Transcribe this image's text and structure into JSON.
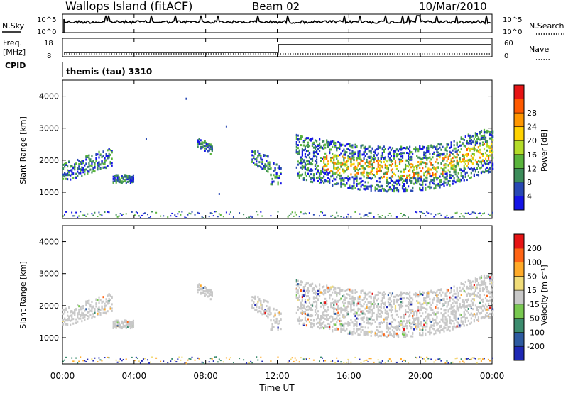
{
  "header": {
    "title": "Wallops Island (fitACF)",
    "beam": "Beam 02",
    "date": "10/Mar/2010"
  },
  "top_panels": {
    "nsky": {
      "label": "N.Sky",
      "ticks": [
        "10^5",
        "10^0"
      ],
      "right_ticks": [
        "10^5",
        "10^0"
      ],
      "right_label": "N.Search"
    },
    "freq": {
      "label_lines": [
        "Freq.",
        "[MHz]"
      ],
      "ticks": [
        "18",
        "8"
      ],
      "right_ticks": [
        "60",
        "0"
      ],
      "right_label": "Nave"
    },
    "cpid": {
      "label": "CPID",
      "value": "themis (tau) 3310"
    }
  },
  "chart_data": [
    {
      "type": "heatmap",
      "name": "power",
      "ylabel": "Slant Range [km]",
      "yticks": [
        "1000",
        "2000",
        "3000",
        "4000"
      ],
      "ylim": [
        180,
        4500
      ],
      "xlim": [
        0,
        24
      ],
      "colorbar": {
        "label": "Power [dB]",
        "ticks": [
          "4",
          "8",
          "12",
          "16",
          "20",
          "24",
          "28"
        ],
        "colors": [
          "#1414e6",
          "#2848b4",
          "#3c8c5a",
          "#5ab43c",
          "#b4dc28",
          "#ffd200",
          "#ff9600",
          "#ff5a00",
          "#e61414"
        ]
      }
    },
    {
      "type": "heatmap",
      "name": "velocity",
      "ylabel": "Slant Range [km]",
      "yticks": [
        "1000",
        "2000",
        "3000",
        "4000"
      ],
      "ylim": [
        180,
        4500
      ],
      "xlim": [
        0,
        24
      ],
      "xlabel": "Time UT",
      "xticks": [
        "00:00",
        "04:00",
        "08:00",
        "12:00",
        "16:00",
        "20:00",
        "00:00"
      ],
      "colorbar": {
        "label": "Velocity [m s⁻¹]",
        "ticks": [
          "200",
          "100",
          "50",
          "15",
          "-15",
          "-50",
          "-100",
          "-200"
        ],
        "colors": [
          "#1e28b4",
          "#2d5aa0",
          "#3c8c6e",
          "#78c850",
          "#c8c8c8",
          "#f0dc78",
          "#ffaa28",
          "#ff6414",
          "#e61414"
        ]
      }
    }
  ]
}
